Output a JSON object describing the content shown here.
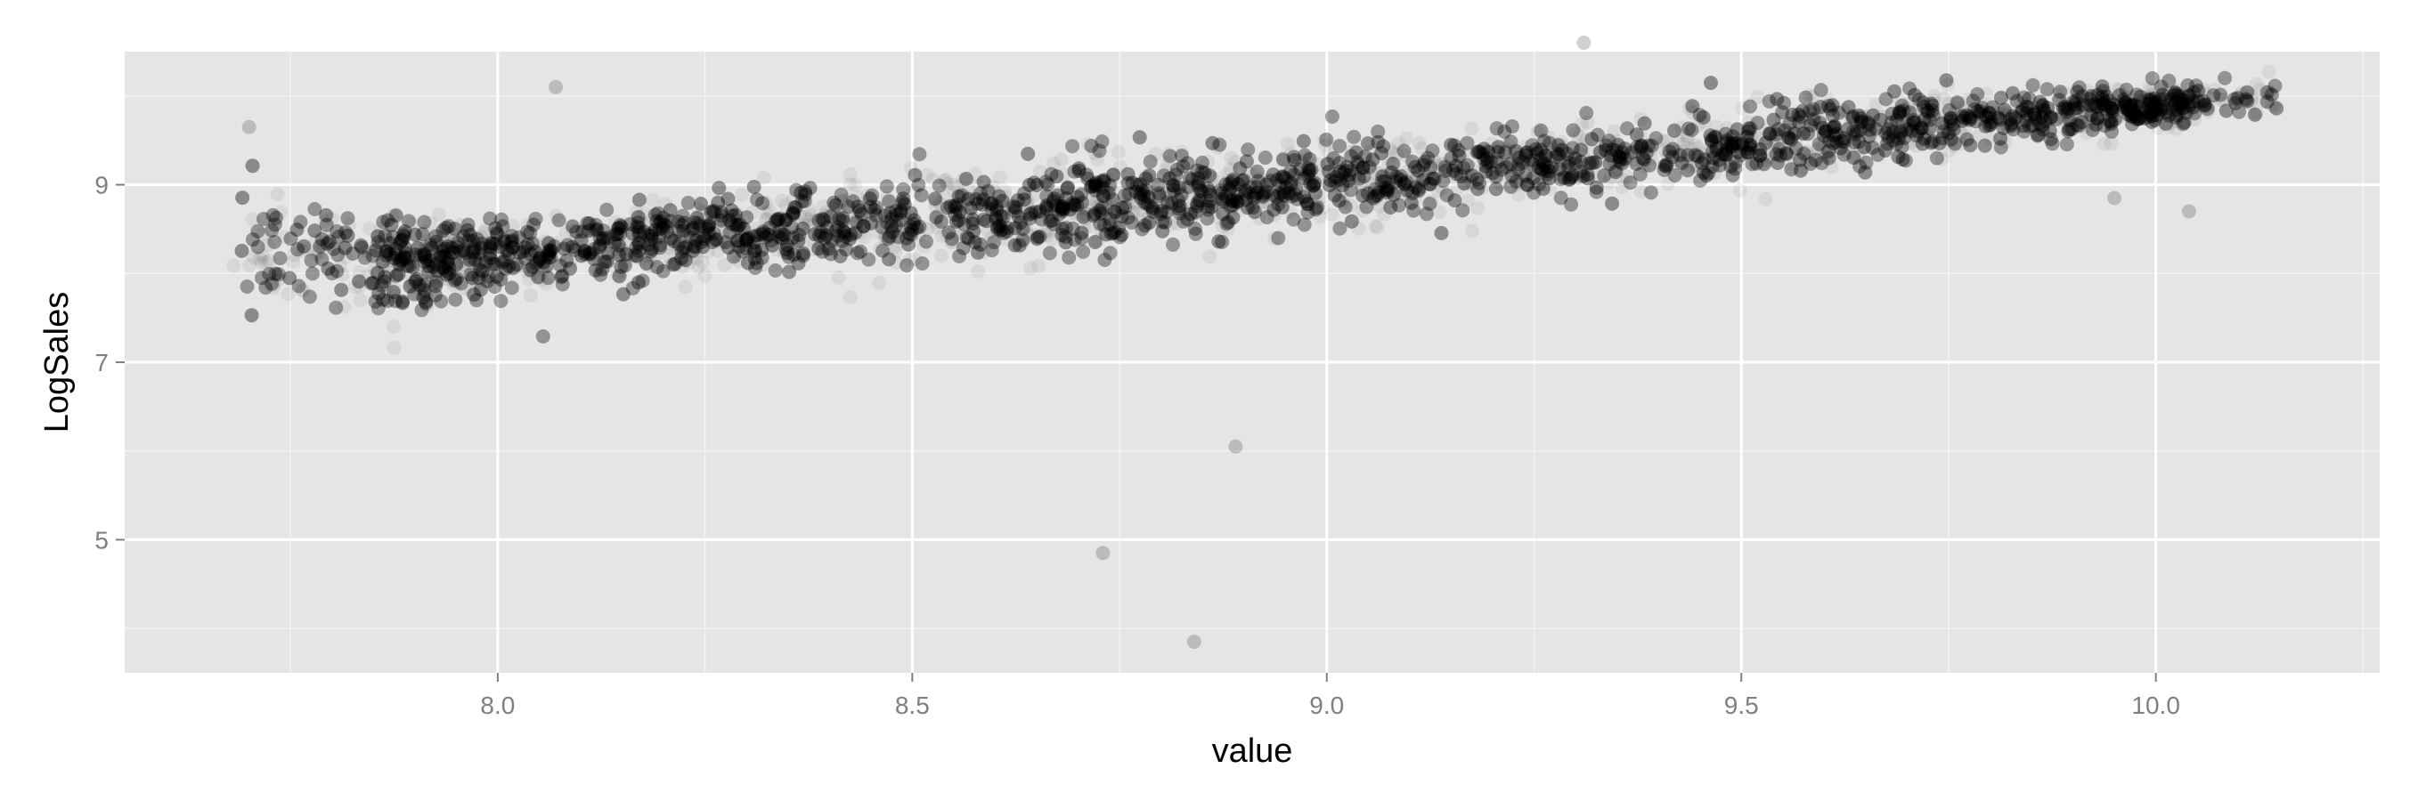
{
  "chart_data": {
    "type": "scatter",
    "title": "",
    "xlabel": "value",
    "ylabel": "LogSales",
    "xlim": [
      7.55,
      10.27
    ],
    "ylim": [
      3.5,
      10.5
    ],
    "x_ticks": [
      8.0,
      8.5,
      9.0,
      9.5,
      10.0
    ],
    "x_tick_labels": [
      "8.0",
      "8.5",
      "9.0",
      "9.5",
      "10.0"
    ],
    "y_ticks": [
      5,
      7,
      9
    ],
    "y_tick_labels": [
      "5",
      "7",
      "9"
    ],
    "grid": true,
    "point_color": "#000000",
    "point_alpha": 0.06,
    "panel_background": "#e5e5e5",
    "gridline_color": "#ffffff",
    "trend": {
      "x": [
        7.68,
        7.9,
        8.0,
        8.25,
        8.5,
        8.75,
        9.0,
        9.25,
        9.5,
        9.75,
        10.0,
        10.15
      ],
      "y": [
        8.25,
        8.1,
        8.2,
        8.4,
        8.6,
        8.8,
        9.0,
        9.25,
        9.45,
        9.7,
        9.9,
        10.0
      ],
      "spread": [
        0.55,
        0.45,
        0.35,
        0.4,
        0.45,
        0.45,
        0.42,
        0.38,
        0.34,
        0.3,
        0.22,
        0.18
      ]
    },
    "outliers": [
      {
        "x": 8.73,
        "y": 4.85
      },
      {
        "x": 8.84,
        "y": 3.85
      },
      {
        "x": 8.89,
        "y": 6.05
      },
      {
        "x": 7.7,
        "y": 9.65
      },
      {
        "x": 8.07,
        "y": 10.1
      },
      {
        "x": 9.31,
        "y": 10.6
      },
      {
        "x": 9.95,
        "y": 8.85
      },
      {
        "x": 10.04,
        "y": 8.7
      }
    ]
  }
}
